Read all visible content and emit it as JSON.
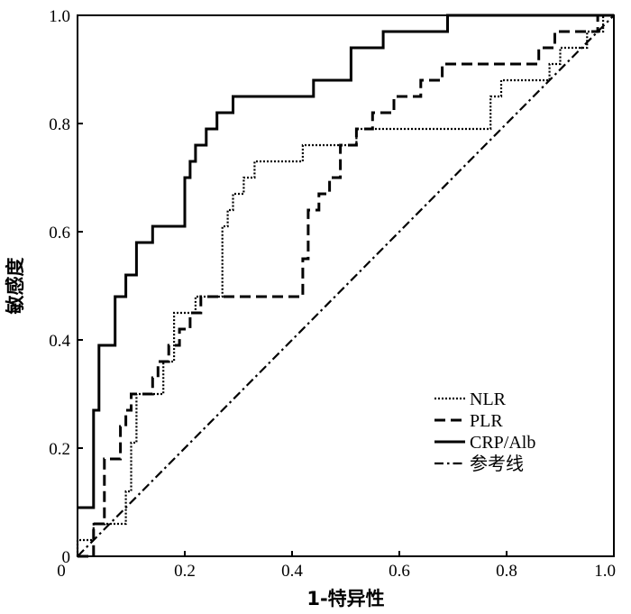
{
  "chart_data": {
    "type": "line",
    "xlabel": "1-特异性",
    "ylabel": "敏感度",
    "xlim": [
      0,
      1
    ],
    "ylim": [
      0,
      1
    ],
    "xticks": [
      "0",
      "0.2",
      "0.4",
      "0.6",
      "0.8",
      "1.0"
    ],
    "yticks": [
      "0",
      "0.2",
      "0.4",
      "0.6",
      "0.8",
      "1.0"
    ],
    "grid": false,
    "legend_position": "bottom-right",
    "series": [
      {
        "name": "NLR",
        "style": "dotted",
        "points": [
          [
            0,
            0
          ],
          [
            0,
            0.03
          ],
          [
            0.03,
            0.03
          ],
          [
            0.03,
            0.06
          ],
          [
            0.09,
            0.06
          ],
          [
            0.09,
            0.12
          ],
          [
            0.1,
            0.12
          ],
          [
            0.1,
            0.21
          ],
          [
            0.11,
            0.21
          ],
          [
            0.11,
            0.3
          ],
          [
            0.16,
            0.3
          ],
          [
            0.16,
            0.36
          ],
          [
            0.18,
            0.36
          ],
          [
            0.18,
            0.45
          ],
          [
            0.22,
            0.45
          ],
          [
            0.22,
            0.48
          ],
          [
            0.27,
            0.48
          ],
          [
            0.27,
            0.61
          ],
          [
            0.28,
            0.61
          ],
          [
            0.28,
            0.64
          ],
          [
            0.29,
            0.64
          ],
          [
            0.29,
            0.67
          ],
          [
            0.31,
            0.67
          ],
          [
            0.31,
            0.7
          ],
          [
            0.33,
            0.7
          ],
          [
            0.33,
            0.73
          ],
          [
            0.42,
            0.73
          ],
          [
            0.42,
            0.76
          ],
          [
            0.52,
            0.76
          ],
          [
            0.52,
            0.79
          ],
          [
            0.77,
            0.79
          ],
          [
            0.77,
            0.85
          ],
          [
            0.79,
            0.85
          ],
          [
            0.79,
            0.88
          ],
          [
            0.88,
            0.88
          ],
          [
            0.88,
            0.91
          ],
          [
            0.9,
            0.91
          ],
          [
            0.9,
            0.94
          ],
          [
            0.95,
            0.94
          ],
          [
            0.95,
            0.97
          ],
          [
            0.98,
            0.97
          ],
          [
            0.98,
            1.0
          ],
          [
            1.0,
            1.0
          ]
        ]
      },
      {
        "name": "PLR",
        "style": "dashed",
        "points": [
          [
            0,
            0
          ],
          [
            0.03,
            0
          ],
          [
            0.03,
            0.06
          ],
          [
            0.05,
            0.06
          ],
          [
            0.05,
            0.18
          ],
          [
            0.08,
            0.18
          ],
          [
            0.08,
            0.24
          ],
          [
            0.09,
            0.24
          ],
          [
            0.09,
            0.27
          ],
          [
            0.1,
            0.27
          ],
          [
            0.1,
            0.3
          ],
          [
            0.14,
            0.3
          ],
          [
            0.14,
            0.33
          ],
          [
            0.15,
            0.33
          ],
          [
            0.15,
            0.36
          ],
          [
            0.17,
            0.36
          ],
          [
            0.17,
            0.39
          ],
          [
            0.19,
            0.39
          ],
          [
            0.19,
            0.42
          ],
          [
            0.21,
            0.42
          ],
          [
            0.21,
            0.45
          ],
          [
            0.23,
            0.45
          ],
          [
            0.23,
            0.48
          ],
          [
            0.42,
            0.48
          ],
          [
            0.42,
            0.55
          ],
          [
            0.43,
            0.55
          ],
          [
            0.43,
            0.64
          ],
          [
            0.45,
            0.64
          ],
          [
            0.45,
            0.67
          ],
          [
            0.47,
            0.67
          ],
          [
            0.47,
            0.7
          ],
          [
            0.49,
            0.7
          ],
          [
            0.49,
            0.76
          ],
          [
            0.52,
            0.76
          ],
          [
            0.52,
            0.79
          ],
          [
            0.55,
            0.79
          ],
          [
            0.55,
            0.82
          ],
          [
            0.59,
            0.82
          ],
          [
            0.59,
            0.85
          ],
          [
            0.64,
            0.85
          ],
          [
            0.64,
            0.88
          ],
          [
            0.68,
            0.88
          ],
          [
            0.68,
            0.91
          ],
          [
            0.86,
            0.91
          ],
          [
            0.86,
            0.94
          ],
          [
            0.89,
            0.94
          ],
          [
            0.89,
            0.97
          ],
          [
            0.97,
            0.97
          ],
          [
            0.97,
            1.0
          ],
          [
            1.0,
            1.0
          ]
        ]
      },
      {
        "name": "CRP/Alb",
        "style": "solid",
        "points": [
          [
            0,
            0.09
          ],
          [
            0.03,
            0.09
          ],
          [
            0.03,
            0.27
          ],
          [
            0.04,
            0.27
          ],
          [
            0.04,
            0.39
          ],
          [
            0.07,
            0.39
          ],
          [
            0.07,
            0.48
          ],
          [
            0.09,
            0.48
          ],
          [
            0.09,
            0.52
          ],
          [
            0.11,
            0.52
          ],
          [
            0.11,
            0.58
          ],
          [
            0.14,
            0.58
          ],
          [
            0.14,
            0.61
          ],
          [
            0.2,
            0.61
          ],
          [
            0.2,
            0.7
          ],
          [
            0.21,
            0.7
          ],
          [
            0.21,
            0.73
          ],
          [
            0.22,
            0.73
          ],
          [
            0.22,
            0.76
          ],
          [
            0.24,
            0.76
          ],
          [
            0.24,
            0.79
          ],
          [
            0.26,
            0.79
          ],
          [
            0.26,
            0.82
          ],
          [
            0.29,
            0.82
          ],
          [
            0.29,
            0.85
          ],
          [
            0.44,
            0.85
          ],
          [
            0.44,
            0.88
          ],
          [
            0.51,
            0.88
          ],
          [
            0.51,
            0.94
          ],
          [
            0.57,
            0.94
          ],
          [
            0.57,
            0.97
          ],
          [
            0.69,
            0.97
          ],
          [
            0.69,
            1.0
          ],
          [
            1.0,
            1.0
          ]
        ]
      },
      {
        "name": "参考线",
        "style": "dash-dot",
        "points": [
          [
            0,
            0
          ],
          [
            1,
            1
          ]
        ]
      }
    ]
  }
}
